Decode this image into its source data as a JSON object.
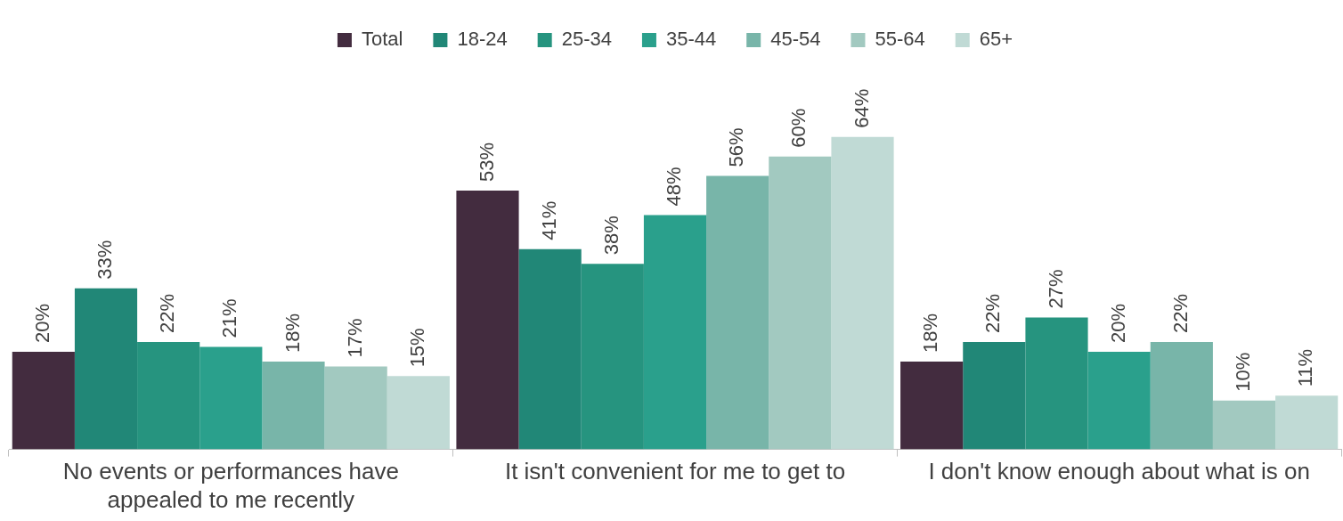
{
  "chart_data": {
    "type": "bar",
    "categories": [
      "No events or performances have appealed to me recently",
      "It isn't convenient for me to get to",
      "I don't know enough about what is on"
    ],
    "legend": "top",
    "data_labels": true,
    "series": [
      {
        "name": "Total",
        "color": "#432c3f",
        "values": [
          20,
          53,
          18
        ],
        "value_labels": [
          "20%",
          "53%",
          "18%"
        ]
      },
      {
        "name": "18-24",
        "color": "#218777",
        "values": [
          33,
          41,
          22
        ],
        "value_labels": [
          "33%",
          "41%",
          "22%"
        ]
      },
      {
        "name": "25-34",
        "color": "#26947f",
        "values": [
          22,
          38,
          27
        ],
        "value_labels": [
          "22%",
          "38%",
          "27%"
        ]
      },
      {
        "name": "35-44",
        "color": "#2aa08c",
        "values": [
          21,
          48,
          20
        ],
        "value_labels": [
          "21%",
          "48%",
          "20%"
        ]
      },
      {
        "name": "45-54",
        "color": "#78b5a9",
        "values": [
          18,
          56,
          22
        ],
        "value_labels": [
          "18%",
          "56%",
          "22%"
        ]
      },
      {
        "name": "55-64",
        "color": "#a2c9c0",
        "values": [
          17,
          60,
          10
        ],
        "value_labels": [
          "17%",
          "60%",
          "10%"
        ]
      },
      {
        "name": "65+",
        "color": "#c0dad5",
        "values": [
          15,
          64,
          11
        ],
        "value_labels": [
          "15%",
          "64%",
          "11%"
        ]
      }
    ]
  }
}
